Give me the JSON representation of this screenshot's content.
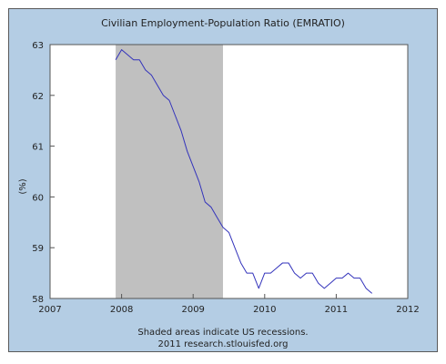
{
  "chart_data": {
    "type": "line",
    "title": "Civilian Employment-Population Ratio (EMRATIO)",
    "ylabel": "(%)",
    "xlabel": "",
    "xlim": [
      2007,
      2012
    ],
    "ylim": [
      58,
      63
    ],
    "x_ticks": [
      2007,
      2008,
      2009,
      2010,
      2011,
      2012
    ],
    "x_tick_labels": [
      "2007",
      "2008",
      "2009",
      "2010",
      "2011",
      "2012"
    ],
    "y_ticks": [
      58,
      59,
      60,
      61,
      62,
      63
    ],
    "y_tick_labels": [
      "58",
      "59",
      "60",
      "61",
      "62",
      "63"
    ],
    "grid": false,
    "recession": {
      "start": 2007.917,
      "end": 2009.417,
      "color": "#c0c0c0"
    },
    "series": [
      {
        "color": "#3333bb",
        "x": [
          2007.917,
          2008.0,
          2008.083,
          2008.167,
          2008.25,
          2008.333,
          2008.417,
          2008.5,
          2008.583,
          2008.667,
          2008.75,
          2008.833,
          2008.917,
          2009.0,
          2009.083,
          2009.167,
          2009.25,
          2009.333,
          2009.417,
          2009.5,
          2009.583,
          2009.667,
          2009.75,
          2009.833,
          2009.917,
          2010.0,
          2010.083,
          2010.167,
          2010.25,
          2010.333,
          2010.417,
          2010.5,
          2010.583,
          2010.667,
          2010.75,
          2010.833,
          2010.917,
          2011.0,
          2011.083,
          2011.167,
          2011.25,
          2011.333,
          2011.417,
          2011.5
        ],
        "y": [
          62.7,
          62.9,
          62.8,
          62.7,
          62.7,
          62.5,
          62.4,
          62.2,
          62.0,
          61.9,
          61.6,
          61.3,
          60.9,
          60.6,
          60.3,
          59.9,
          59.8,
          59.6,
          59.4,
          59.3,
          59.0,
          58.7,
          58.5,
          58.5,
          58.2,
          58.5,
          58.5,
          58.6,
          58.7,
          58.7,
          58.5,
          58.4,
          58.5,
          58.5,
          58.3,
          58.2,
          58.3,
          58.4,
          58.4,
          58.5,
          58.4,
          58.4,
          58.2,
          58.1
        ]
      }
    ]
  },
  "footer": {
    "note": "Shaded areas indicate US recessions.",
    "source": "2011 research.stlouisfed.org"
  }
}
